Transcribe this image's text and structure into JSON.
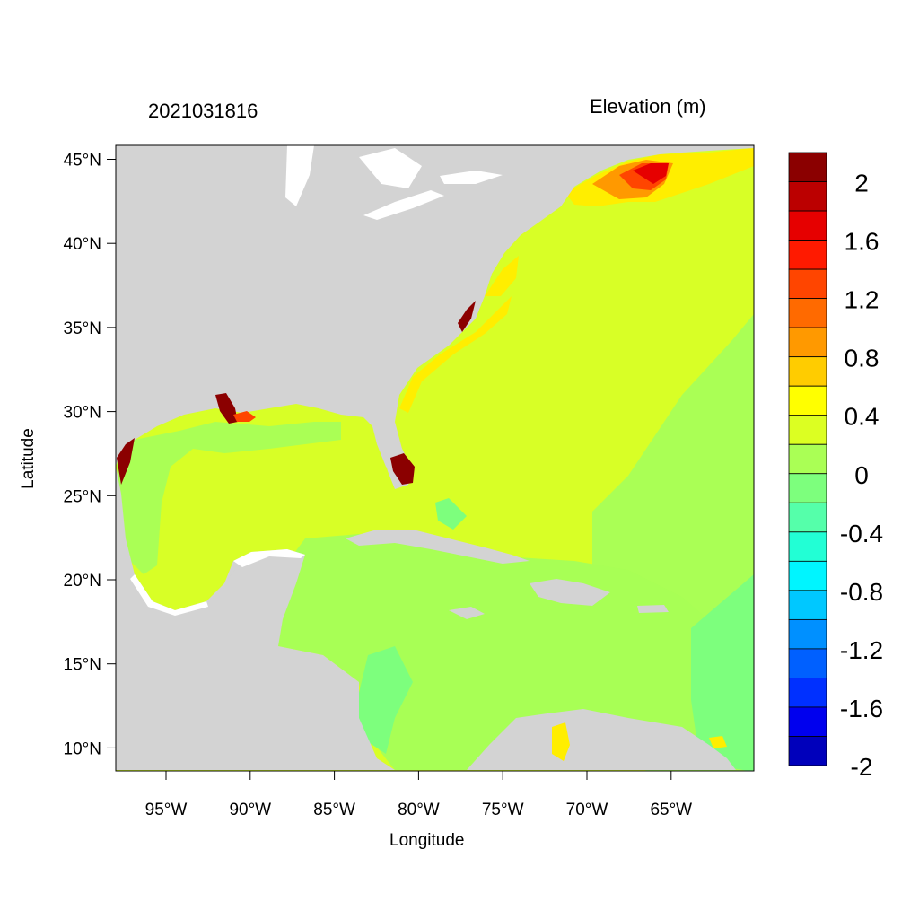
{
  "title_left": "2021031816",
  "title_right": "Elevation (m)",
  "xlabel": "Longitude",
  "ylabel": "Latitude",
  "x_ticks": [
    "95°W",
    "90°W",
    "85°W",
    "80°W",
    "75°W",
    "70°W",
    "65°W"
  ],
  "y_ticks": [
    "45°N",
    "40°N",
    "35°N",
    "30°N",
    "25°N",
    "20°N",
    "15°N",
    "10°N"
  ],
  "colorbar": {
    "labels": [
      "2",
      "1.6",
      "1.2",
      "0.8",
      "0.4",
      "0",
      "-0.4",
      "-0.8",
      "-1.2",
      "-1.6",
      "-2"
    ],
    "colors": [
      "#8b0000",
      "#bb0000",
      "#e60000",
      "#ff1a00",
      "#ff4500",
      "#ff6a00",
      "#ff9900",
      "#ffcc00",
      "#ffff00",
      "#dcff22",
      "#aaff55",
      "#7dff7d",
      "#55ffaa",
      "#22ffd5",
      "#00f5ff",
      "#00c8ff",
      "#0090ff",
      "#0060ff",
      "#0030ff",
      "#0000ee",
      "#0000bb"
    ]
  },
  "colors": {
    "land": "#d3d3d3",
    "ocean_base": "#d8ff26",
    "shelf": "#aaff55",
    "caribbean": "#a8ff55",
    "coastal_high": "#ffee00",
    "coastal_orange": "#ff9900",
    "extreme": "#8b0000"
  }
}
